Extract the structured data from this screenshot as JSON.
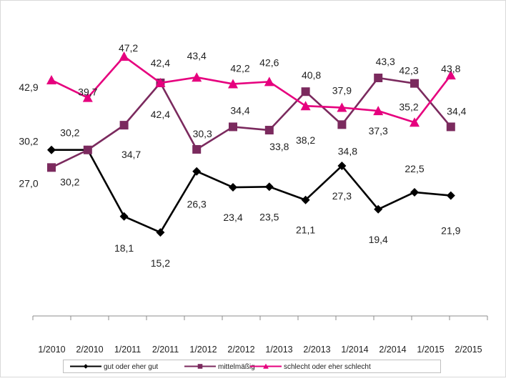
{
  "chart_data": {
    "type": "line",
    "categories": [
      "1/2010",
      "2/2010",
      "1/2011",
      "2/2011",
      "1/2012",
      "2/2012",
      "1/2013",
      "2/2013",
      "1/2014",
      "2/2014",
      "1/2015",
      "2/2015"
    ],
    "ylim": [
      0,
      55
    ],
    "grid": false,
    "legend_position": "bottom",
    "series": [
      {
        "name": "gut oder eher gut",
        "color": "#000000",
        "marker": "diamond",
        "values": [
          30.2,
          30.2,
          18.1,
          15.2,
          26.3,
          23.4,
          23.5,
          21.1,
          27.3,
          19.4,
          22.5,
          21.9
        ],
        "labels": [
          "30,2",
          "30,2",
          "18,1",
          "15,2",
          "26,3",
          "23,4",
          "23,5",
          "21,1",
          "27,3",
          "19,4",
          "22,5",
          "21,9"
        ]
      },
      {
        "name": "mittelmäßig",
        "color": "#7b2a5e",
        "marker": "square",
        "values": [
          27.0,
          30.2,
          34.7,
          42.4,
          30.3,
          34.4,
          33.8,
          40.8,
          34.8,
          43.3,
          42.3,
          34.4
        ],
        "labels": [
          "27,0",
          "30,2",
          "34,7",
          "42,4",
          "30,3",
          "34,4",
          "33,8",
          "40,8",
          "34,8",
          "43,3",
          "42,3",
          "34,4"
        ]
      },
      {
        "name": "schlecht oder eher schlecht",
        "color": "#e6007e",
        "marker": "triangle",
        "values": [
          42.9,
          39.7,
          47.2,
          42.4,
          43.4,
          42.2,
          42.6,
          38.2,
          37.9,
          37.3,
          35.2,
          43.8
        ],
        "labels": [
          "42,9",
          "39,7",
          "47,2",
          "42,4",
          "43,4",
          "42,2",
          "42,6",
          "38,2",
          "37,9",
          "37,3",
          "35,2",
          "43,8"
        ]
      }
    ]
  }
}
